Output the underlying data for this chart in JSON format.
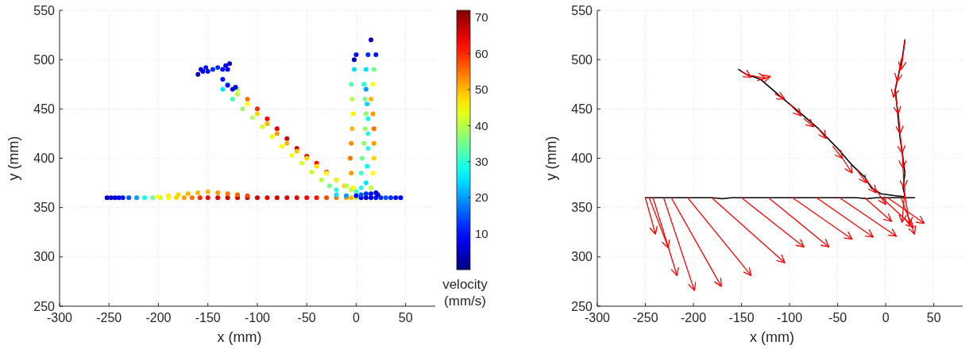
{
  "chart_data": [
    {
      "type": "scatter",
      "xlabel": "x (mm)",
      "ylabel": "y (mm)",
      "clabel": "velocity (mm/s)",
      "xlim": [
        -300,
        80
      ],
      "ylim": [
        250,
        550
      ],
      "xticks": [
        -300,
        -250,
        -200,
        -150,
        -100,
        -50,
        0,
        50
      ],
      "yticks": [
        250,
        300,
        350,
        400,
        450,
        500,
        550
      ],
      "clim": [
        0,
        72
      ],
      "cticks": [
        10,
        20,
        30,
        40,
        50,
        60,
        70
      ],
      "grid": true,
      "marker": "circle",
      "x": [
        -252,
        -248,
        -244,
        -240,
        -236,
        -230,
        -222,
        -214,
        -206,
        -198,
        -190,
        -182,
        -174,
        -166,
        -158,
        -150,
        -140,
        -130,
        -120,
        -110,
        -100,
        -90,
        -80,
        -70,
        -60,
        -50,
        -40,
        -30,
        -20,
        -10,
        -5,
        0,
        5,
        10,
        15,
        20,
        25,
        30,
        35,
        40,
        45,
        -200,
        -190,
        -180,
        -170,
        -160,
        -150,
        -140,
        -130,
        -120,
        -110,
        -120,
        -110,
        -100,
        -90,
        -80,
        -70,
        -60,
        -50,
        -40,
        -30,
        -20,
        -12,
        -5,
        -130,
        -120,
        -110,
        -100,
        -90,
        -80,
        -70,
        -60,
        -50,
        -40,
        -30,
        -20,
        -10,
        0,
        -135,
        -125,
        -115,
        -105,
        -95,
        -85,
        -75,
        -65,
        -55,
        -45,
        -35,
        -27,
        -20,
        -160,
        -157,
        -155,
        -152,
        -150,
        -145,
        -140,
        -135,
        -132,
        -130,
        -128,
        -135,
        -130,
        -125,
        -122,
        -3,
        -5,
        -6,
        -5,
        -4,
        -3,
        -4,
        -5,
        -2,
        0,
        -2,
        5,
        5,
        6,
        8,
        9,
        10,
        9,
        8,
        10,
        12,
        15,
        15,
        17,
        18,
        18,
        18,
        17,
        15,
        17,
        18,
        20,
        10,
        11,
        12,
        12,
        12,
        11,
        10,
        -20,
        -10,
        0,
        5,
        10,
        15,
        20,
        22
      ],
      "values": [
        360,
        360,
        360,
        360,
        360,
        360,
        360,
        360,
        360,
        360,
        360,
        360,
        360,
        360,
        360,
        360,
        360,
        360,
        360,
        360,
        360,
        360,
        360,
        360,
        360,
        360,
        360,
        360,
        360,
        360,
        360,
        360,
        360,
        360,
        360,
        360,
        360,
        360,
        360,
        360,
        360,
        361,
        362,
        363,
        364,
        365,
        366,
        365,
        364,
        363,
        362,
        470,
        460,
        450,
        440,
        430,
        420,
        410,
        402,
        395,
        386,
        378,
        372,
        368,
        475,
        465,
        455,
        445,
        435,
        425,
        415,
        407,
        400,
        392,
        385,
        378,
        372,
        366,
        470,
        460,
        450,
        441,
        432,
        422,
        412,
        403,
        395,
        386,
        378,
        372,
        368,
        485,
        490,
        488,
        492,
        488,
        490,
        492,
        490,
        494,
        490,
        496,
        480,
        474,
        470,
        472,
        370,
        385,
        400,
        415,
        430,
        445,
        460,
        475,
        490,
        505,
        500,
        370,
        385,
        400,
        415,
        430,
        445,
        460,
        475,
        490,
        505,
        520,
        370,
        385,
        400,
        415,
        430,
        445,
        460,
        475,
        490,
        505,
        375,
        392,
        410,
        425,
        440,
        455,
        470,
        363,
        362,
        362,
        363,
        364,
        364,
        365,
        363
      ],
      "cvalues": [
        5,
        5,
        6,
        8,
        10,
        15,
        20,
        28,
        35,
        40,
        45,
        48,
        52,
        55,
        60,
        63,
        65,
        66,
        66,
        67,
        66,
        65,
        66,
        65,
        64,
        63,
        62,
        58,
        55,
        52,
        50,
        40,
        8,
        6,
        8,
        10,
        12,
        15,
        12,
        10,
        8,
        45,
        46,
        48,
        50,
        50,
        50,
        52,
        55,
        56,
        58,
        40,
        55,
        60,
        63,
        65,
        66,
        65,
        64,
        62,
        60,
        55,
        48,
        40,
        30,
        40,
        45,
        48,
        50,
        52,
        50,
        49,
        48,
        47,
        45,
        43,
        40,
        30,
        25,
        32,
        38,
        40,
        42,
        44,
        45,
        44,
        42,
        41,
        40,
        35,
        30,
        5,
        6,
        8,
        10,
        10,
        12,
        12,
        10,
        8,
        8,
        5,
        10,
        10,
        8,
        6,
        45,
        52,
        55,
        53,
        50,
        46,
        40,
        33,
        25,
        10,
        5,
        30,
        32,
        35,
        37,
        38,
        37,
        35,
        30,
        25,
        12,
        5,
        40,
        45,
        48,
        52,
        55,
        52,
        50,
        45,
        35,
        10,
        25,
        27,
        30,
        29,
        28,
        24,
        20,
        25,
        20,
        10,
        15,
        12,
        10,
        8,
        6
      ]
    },
    {
      "type": "line",
      "xlabel": "x (mm)",
      "ylabel": "y (mm)",
      "xlim": [
        -300,
        80
      ],
      "ylim": [
        250,
        550
      ],
      "xticks": [
        -300,
        -250,
        -200,
        -150,
        -100,
        -50,
        0,
        50
      ],
      "yticks": [
        250,
        300,
        350,
        400,
        450,
        500,
        550
      ],
      "grid": true,
      "series": [
        {
          "color": "#000000",
          "x": [
            -250,
            -180,
            -170,
            -160,
            -150,
            -30,
            -20,
            -10,
            30
          ],
          "values": [
            360,
            360,
            359,
            360,
            360,
            360,
            359,
            360,
            360
          ]
        },
        {
          "color": "#000000",
          "x": [
            -153,
            -145,
            -130,
            -110,
            -90,
            -70,
            -50,
            -35,
            -22,
            -15,
            -5,
            10,
            20
          ],
          "values": [
            490,
            485,
            480,
            463,
            447,
            430,
            410,
            393,
            381,
            370,
            364,
            362,
            361
          ]
        },
        {
          "color": "#000000",
          "x": [
            20,
            17,
            10,
            12,
            15,
            18,
            20,
            18,
            20
          ],
          "values": [
            520,
            500,
            470,
            450,
            420,
            400,
            385,
            370,
            362
          ]
        },
        {
          "color": "#ff0000",
          "x": [
            -250,
            -239.5
          ],
          "values": [
            360,
            323
          ]
        },
        {
          "color": "#ff0000",
          "x": [
            -246,
            -226
          ],
          "values": [
            360,
            309
          ]
        },
        {
          "color": "#ff0000",
          "x": [
            -242,
            -217
          ],
          "values": [
            360,
            281
          ]
        },
        {
          "color": "#ff0000",
          "x": [
            -231,
            -199
          ],
          "values": [
            360,
            266
          ]
        },
        {
          "color": "#ff0000",
          "x": [
            -223,
            -171
          ],
          "values": [
            360,
            270
          ]
        },
        {
          "color": "#ff0000",
          "x": [
            -206,
            -140
          ],
          "values": [
            360,
            281
          ]
        },
        {
          "color": "#ff0000",
          "x": [
            -181,
            -105
          ],
          "values": [
            360,
            294
          ]
        },
        {
          "color": "#ff0000",
          "x": [
            -150,
            -85
          ],
          "values": [
            360,
            310
          ]
        },
        {
          "color": "#ff0000",
          "x": [
            -122,
            -59
          ],
          "values": [
            360,
            310
          ]
        },
        {
          "color": "#ff0000",
          "x": [
            -97,
            -35
          ],
          "values": [
            360,
            318
          ]
        },
        {
          "color": "#ff0000",
          "x": [
            -72,
            -13
          ],
          "values": [
            360,
            320
          ]
        },
        {
          "color": "#ff0000",
          "x": [
            -48,
            11
          ],
          "values": [
            360,
            321
          ]
        },
        {
          "color": "#ff0000",
          "x": [
            -22,
            6
          ],
          "values": [
            360,
            336
          ]
        },
        {
          "color": "#ff0000",
          "x": [
            -4,
            29
          ],
          "values": [
            360,
            330
          ]
        },
        {
          "color": "#ff0000",
          "x": [
            2,
            40
          ],
          "values": [
            360,
            334
          ]
        },
        {
          "color": "#ff0000",
          "x": [
            16,
            30
          ],
          "values": [
            360,
            323
          ]
        },
        {
          "color": "#ff0000",
          "x": [
            -150,
            -140
          ],
          "values": [
            488,
            482
          ]
        },
        {
          "color": "#ff0000",
          "x": [
            -140,
            -125
          ],
          "values": [
            484,
            481
          ]
        },
        {
          "color": "#ff0000",
          "x": [
            -130,
            -120
          ],
          "values": [
            480,
            483
          ]
        },
        {
          "color": "#ff0000",
          "x": [
            -115,
            -105
          ],
          "values": [
            465,
            460
          ]
        },
        {
          "color": "#ff0000",
          "x": [
            -100,
            -88
          ],
          "values": [
            455,
            443
          ]
        },
        {
          "color": "#ff0000",
          "x": [
            -85,
            -75
          ],
          "values": [
            440,
            432
          ]
        },
        {
          "color": "#ff0000",
          "x": [
            -70,
            -62
          ],
          "values": [
            430,
            420
          ]
        },
        {
          "color": "#ff0000",
          "x": [
            -55,
            -45
          ],
          "values": [
            412,
            400
          ]
        },
        {
          "color": "#ff0000",
          "x": [
            -45,
            -35
          ],
          "values": [
            400,
            385
          ]
        },
        {
          "color": "#ff0000",
          "x": [
            -30,
            -20
          ],
          "values": [
            388,
            375
          ]
        },
        {
          "color": "#ff0000",
          "x": [
            -20,
            -10
          ],
          "values": [
            378,
            365
          ]
        },
        {
          "color": "#ff0000",
          "x": [
            -10,
            0
          ],
          "values": [
            368,
            353
          ]
        },
        {
          "color": "#ff0000",
          "x": [
            20,
            16
          ],
          "values": [
            520,
            490
          ]
        },
        {
          "color": "#ff0000",
          "x": [
            16,
            12
          ],
          "values": [
            500,
            478
          ]
        },
        {
          "color": "#ff0000",
          "x": [
            12,
            8
          ],
          "values": [
            480,
            462
          ]
        },
        {
          "color": "#ff0000",
          "x": [
            10,
            13
          ],
          "values": [
            465,
            445
          ]
        },
        {
          "color": "#ff0000",
          "x": [
            13,
            15
          ],
          "values": [
            448,
            425
          ]
        },
        {
          "color": "#ff0000",
          "x": [
            15,
            17
          ],
          "values": [
            425,
            405
          ]
        },
        {
          "color": "#ff0000",
          "x": [
            17,
            18
          ],
          "values": [
            410,
            390
          ]
        },
        {
          "color": "#ff0000",
          "x": [
            18,
            19
          ],
          "values": [
            390,
            370
          ]
        },
        {
          "color": "#ff0000",
          "x": [
            20,
            17
          ],
          "values": [
            370,
            335
          ]
        },
        {
          "color": "#ff0000",
          "x": [
            20,
            25
          ],
          "values": [
            362,
            332
          ]
        }
      ]
    }
  ]
}
